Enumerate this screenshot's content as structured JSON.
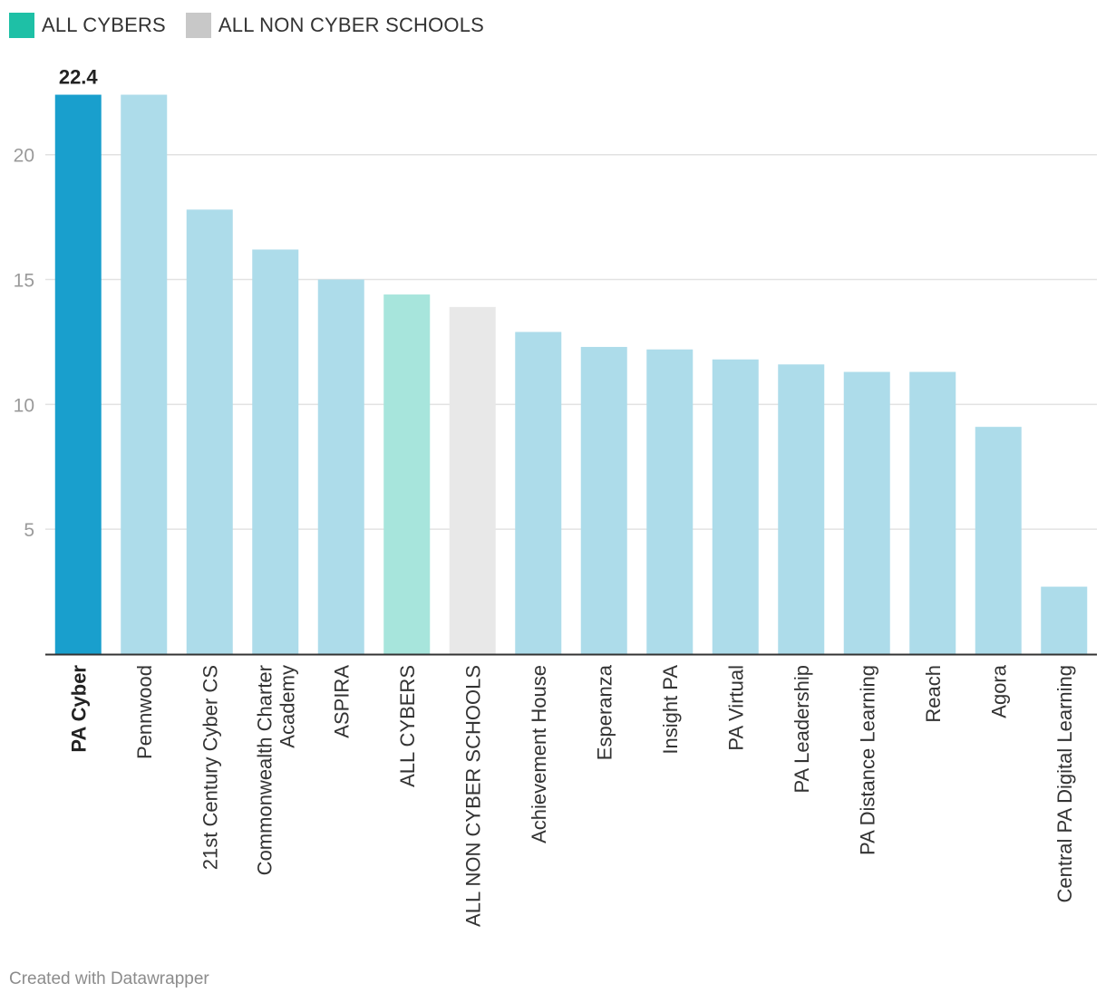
{
  "legend": {
    "items": [
      {
        "label": "ALL CYBERS",
        "color": "#1ec0a6"
      },
      {
        "label": "ALL NON CYBER SCHOOLS",
        "color": "#c8c8c8"
      }
    ]
  },
  "chart_data": {
    "type": "bar",
    "title": "",
    "xlabel": "",
    "ylabel": "",
    "ylim": [
      0,
      23
    ],
    "yticks": [
      5,
      10,
      15,
      20
    ],
    "grid": true,
    "categories": [
      "PA Cyber",
      "Pennwood",
      "21st Century Cyber CS",
      "Commonwealth Charter Academy",
      "ASPIRA",
      "ALL CYBERS",
      "ALL NON CYBER SCHOOLS",
      "Achievement House",
      "Esperanza",
      "Insight PA",
      "PA Virtual",
      "PA Leadership",
      "PA Distance Learning",
      "Reach",
      "Agora",
      "Central PA Digital Learning"
    ],
    "label_lines": [
      [
        "PA Cyber"
      ],
      [
        "Pennwood"
      ],
      [
        "21st Century Cyber CS"
      ],
      [
        "Commonwealth Charter",
        "Academy"
      ],
      [
        "ASPIRA"
      ],
      [
        "ALL CYBERS"
      ],
      [
        "ALL NON CYBER SCHOOLS"
      ],
      [
        "Achievement House"
      ],
      [
        "Esperanza"
      ],
      [
        "Insight PA"
      ],
      [
        "PA Virtual"
      ],
      [
        "PA Leadership"
      ],
      [
        "PA Distance Learning"
      ],
      [
        "Reach"
      ],
      [
        "Agora"
      ],
      [
        "Central PA Digital Learning"
      ]
    ],
    "values": [
      22.4,
      22.4,
      17.8,
      16.2,
      15.0,
      14.4,
      13.9,
      12.9,
      12.3,
      12.2,
      11.8,
      11.6,
      11.3,
      11.3,
      9.1,
      2.7
    ],
    "colors": [
      "#199fcd",
      "#addcea",
      "#addcea",
      "#addcea",
      "#addcea",
      "#a7e5dc",
      "#e8e8e8",
      "#addcea",
      "#addcea",
      "#addcea",
      "#addcea",
      "#addcea",
      "#addcea",
      "#addcea",
      "#addcea",
      "#addcea"
    ],
    "highlight_index": 0,
    "value_labels": [
      {
        "index": 0,
        "text": "22.4"
      }
    ]
  },
  "footer": {
    "credit": "Created with Datawrapper"
  }
}
